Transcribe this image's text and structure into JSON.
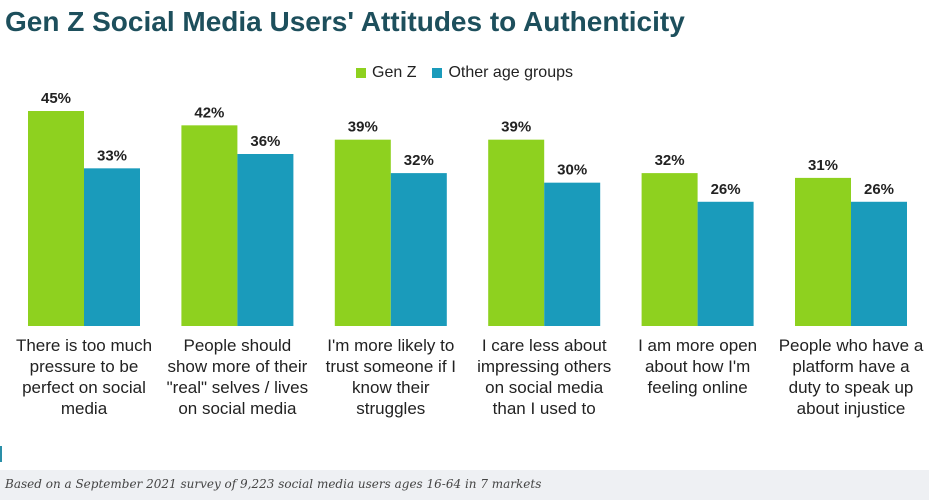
{
  "chart_data": {
    "type": "bar",
    "title": "Gen Z Social Media Users' Attitudes to Authenticity",
    "categories": [
      [
        "There is too much",
        "pressure to be",
        "perfect on social",
        "media"
      ],
      [
        "People should",
        "show more of their",
        "\"real\" selves / lives",
        "on social media"
      ],
      [
        "I'm more likely to",
        "trust someone if I",
        "know their",
        "struggles"
      ],
      [
        "I care less about",
        "impressing others",
        "on social media",
        "than I used to"
      ],
      [
        "I am more open",
        "about how I'm",
        "feeling online"
      ],
      [
        "People who have a",
        "platform have a",
        "duty to speak up",
        "about injustice"
      ]
    ],
    "series": [
      {
        "name": "Gen Z",
        "color": "#8ed11f",
        "values": [
          45,
          42,
          39,
          39,
          32,
          31
        ],
        "labels": [
          "45%",
          "42%",
          "39%",
          "39%",
          "32%",
          "31%"
        ]
      },
      {
        "name": "Other age groups",
        "color": "#1a9bbb",
        "values": [
          33,
          36,
          32,
          30,
          26,
          26
        ],
        "labels": [
          "33%",
          "36%",
          "32%",
          "30%",
          "26%",
          "26%"
        ]
      }
    ],
    "ylim": [
      0,
      45
    ],
    "legend": "top-center",
    "grid": false,
    "xlabel": "",
    "ylabel": ""
  },
  "footer": {
    "source": "Based on a September 2021 survey of 9,223 social media users ages 16-64 in 7 markets"
  }
}
